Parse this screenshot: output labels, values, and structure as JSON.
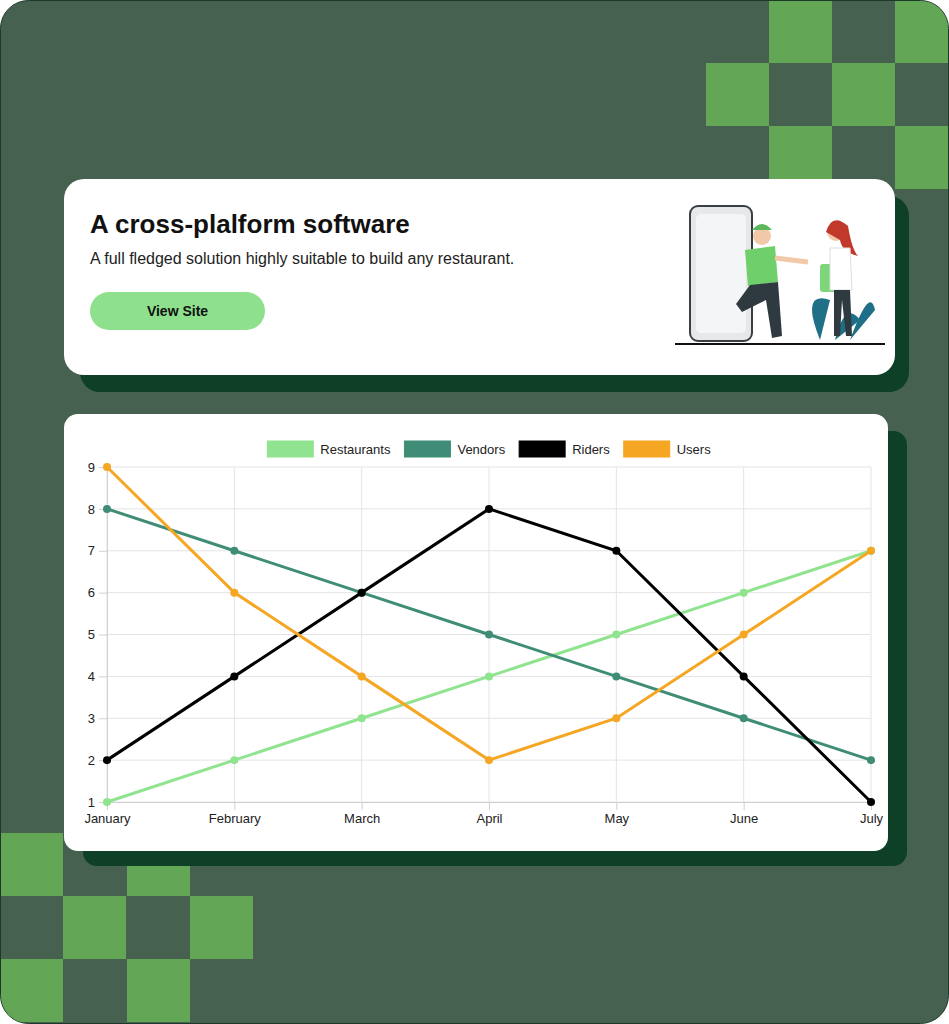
{
  "header": {
    "title": "A cross-plalform software",
    "subtitle": "A full fledged solution highly suitable to build any restaurant.",
    "button": "View Site"
  },
  "chart_data": {
    "type": "line",
    "categories": [
      "January",
      "February",
      "March",
      "April",
      "May",
      "June",
      "July"
    ],
    "series": [
      {
        "name": "Restaurants",
        "color": "#90e48f",
        "values": [
          1,
          2,
          3,
          4,
          5,
          6,
          7
        ]
      },
      {
        "name": "Vendors",
        "color": "#3f8d77",
        "values": [
          8,
          7,
          6,
          5,
          4,
          3,
          2
        ]
      },
      {
        "name": "Riders",
        "color": "#000000",
        "values": [
          2,
          4,
          6,
          8,
          7,
          4,
          1
        ]
      },
      {
        "name": "Users",
        "color": "#f5a623",
        "values": [
          9,
          6,
          4,
          2,
          3,
          5,
          7
        ]
      }
    ],
    "ylim": [
      1,
      9
    ],
    "yticks": [
      1,
      2,
      3,
      4,
      5,
      6,
      7,
      8,
      9
    ],
    "grid": true,
    "legend": "top",
    "marker": "circle",
    "line_style": "solid"
  }
}
